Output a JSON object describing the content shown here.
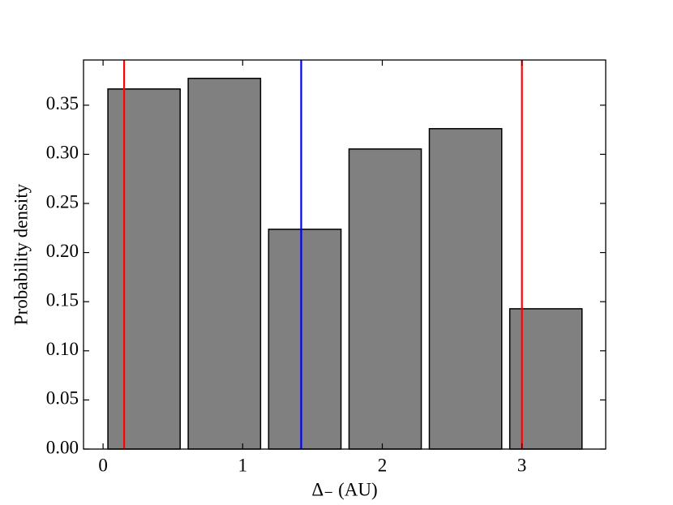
{
  "chart_data": {
    "type": "histogram",
    "xlabel": "Δ₋ (AU)",
    "ylabel": "Probability density",
    "bins": [
      0.006,
      0.581,
      1.157,
      1.733,
      2.308,
      2.884,
      3.459
    ],
    "values": [
      0.3665,
      0.3773,
      0.2237,
      0.3054,
      0.3261,
      0.1428
    ],
    "color": "#808080",
    "edgecolor": "#000000",
    "rwidth": 0.9,
    "xlim": [
      -0.14,
      3.6
    ],
    "ylim": [
      0,
      0.396
    ],
    "xticks": [
      0,
      1,
      2,
      3
    ],
    "yticks": [
      {
        "value": 0,
        "label": "0.00"
      },
      0.05,
      {
        "value": 0.1,
        "label": "0.10"
      },
      0.15,
      {
        "value": 0.2,
        "label": "0.20"
      },
      0.25,
      {
        "value": 0.3,
        "label": "0.30"
      },
      0.35
    ],
    "vlines": [
      {
        "x": 0.151,
        "color": "#ff0000"
      },
      {
        "x": 1.419,
        "color": "#0000ff"
      },
      {
        "x": 3.0,
        "color": "#ff0000"
      }
    ],
    "tick_direction": "in"
  }
}
